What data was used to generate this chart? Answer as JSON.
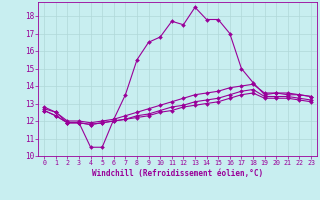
{
  "title": "",
  "xlabel": "Windchill (Refroidissement éolien,°C)",
  "background_color": "#c8eef0",
  "grid_color": "#b0d8d8",
  "line_color": "#990099",
  "xlim": [
    -0.5,
    23.5
  ],
  "ylim": [
    10,
    18.8
  ],
  "yticks": [
    10,
    11,
    12,
    13,
    14,
    15,
    16,
    17,
    18
  ],
  "xticks": [
    0,
    1,
    2,
    3,
    4,
    5,
    6,
    7,
    8,
    9,
    10,
    11,
    12,
    13,
    14,
    15,
    16,
    17,
    18,
    19,
    20,
    21,
    22,
    23
  ],
  "series1_x": [
    0,
    1,
    2,
    3,
    4,
    5,
    6,
    7,
    8,
    9,
    10,
    11,
    12,
    13,
    14,
    15,
    16,
    17,
    18,
    19,
    20,
    21,
    22,
    23
  ],
  "series1_y": [
    12.8,
    12.5,
    11.9,
    11.9,
    10.5,
    10.5,
    12.1,
    13.5,
    15.5,
    16.5,
    16.8,
    17.7,
    17.5,
    18.5,
    17.8,
    17.8,
    17.0,
    15.0,
    14.2,
    13.5,
    13.6,
    13.5,
    13.5,
    13.4
  ],
  "series2_x": [
    0,
    1,
    2,
    3,
    4,
    5,
    6,
    7,
    8,
    9,
    10,
    11,
    12,
    13,
    14,
    15,
    16,
    17,
    18,
    19,
    20,
    21,
    22,
    23
  ],
  "series2_y": [
    12.7,
    12.5,
    12.0,
    12.0,
    11.9,
    12.0,
    12.1,
    12.3,
    12.5,
    12.7,
    12.9,
    13.1,
    13.3,
    13.5,
    13.6,
    13.7,
    13.9,
    14.0,
    14.1,
    13.6,
    13.6,
    13.6,
    13.5,
    13.4
  ],
  "series3_x": [
    0,
    1,
    2,
    3,
    4,
    5,
    6,
    7,
    8,
    9,
    10,
    11,
    12,
    13,
    14,
    15,
    16,
    17,
    18,
    19,
    20,
    21,
    22,
    23
  ],
  "series3_y": [
    12.6,
    12.3,
    11.9,
    11.9,
    11.8,
    11.9,
    12.0,
    12.1,
    12.3,
    12.4,
    12.6,
    12.8,
    12.9,
    13.1,
    13.2,
    13.3,
    13.5,
    13.7,
    13.8,
    13.4,
    13.4,
    13.4,
    13.3,
    13.2
  ],
  "series4_x": [
    0,
    1,
    2,
    3,
    4,
    5,
    6,
    7,
    8,
    9,
    10,
    11,
    12,
    13,
    14,
    15,
    16,
    17,
    18,
    19,
    20,
    21,
    22,
    23
  ],
  "series4_y": [
    12.6,
    12.3,
    11.9,
    11.9,
    11.8,
    11.9,
    12.0,
    12.1,
    12.2,
    12.3,
    12.5,
    12.6,
    12.8,
    12.9,
    13.0,
    13.1,
    13.3,
    13.5,
    13.6,
    13.3,
    13.3,
    13.3,
    13.2,
    13.1
  ]
}
